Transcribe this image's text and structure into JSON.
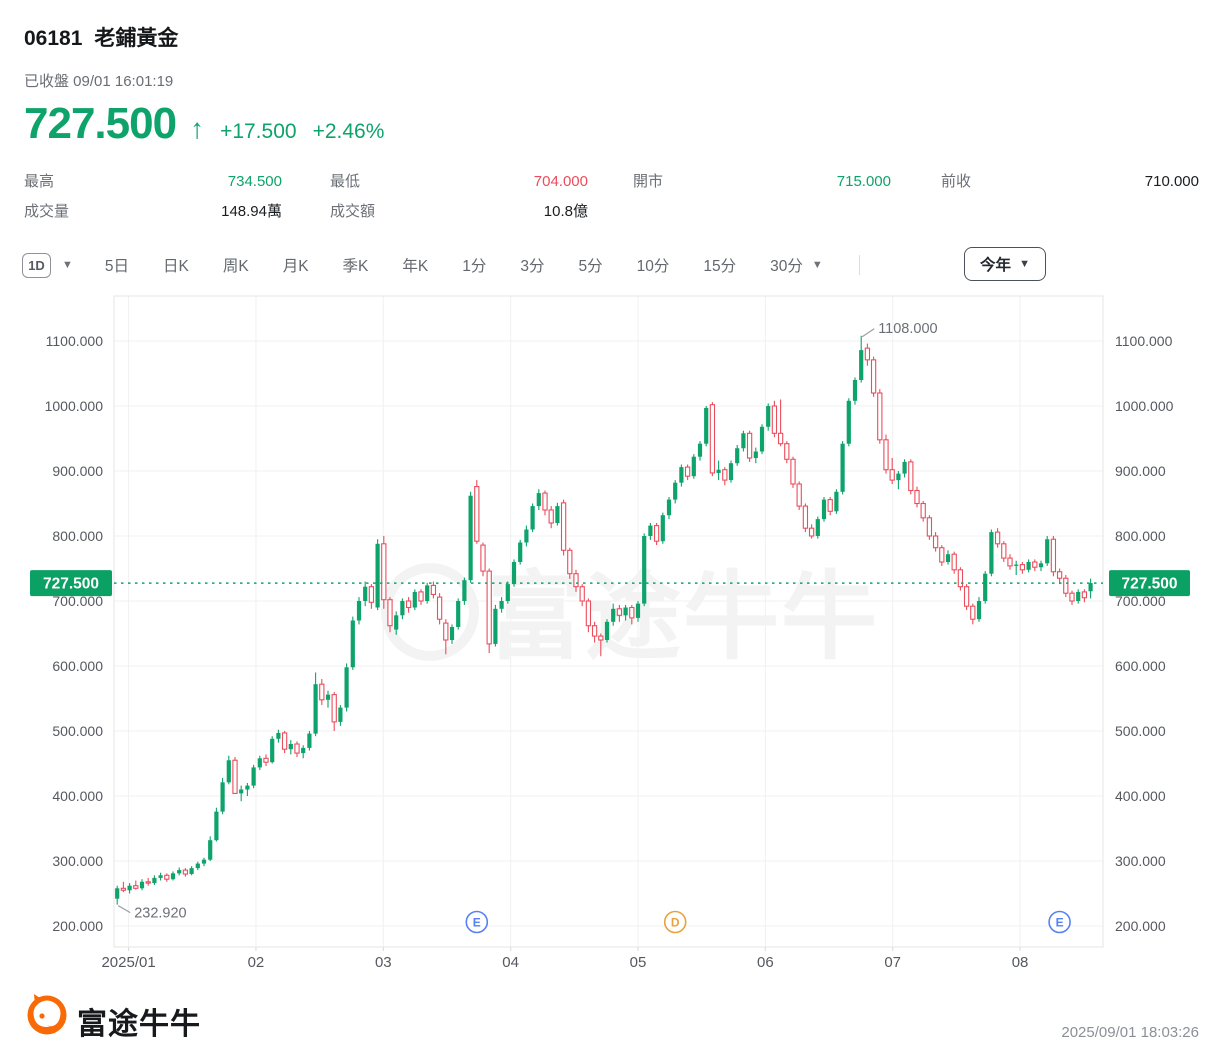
{
  "header": {
    "stock_code": "06181",
    "stock_name": "老鋪黃金",
    "status": "已收盤 09/01 16:01:19",
    "price": "727.500",
    "arrow": "↑",
    "change": "+17.500",
    "change_pct": "+2.46%",
    "stats": [
      {
        "label": "最高",
        "value": "734.500",
        "tone": "up"
      },
      {
        "label": "最低",
        "value": "704.000",
        "tone": "down"
      },
      {
        "label": "開市",
        "value": "715.000",
        "tone": "up"
      },
      {
        "label": "前收",
        "value": "710.000",
        "tone": "neutral"
      },
      {
        "label": "成交量",
        "value": "148.94萬",
        "tone": "neutral"
      },
      {
        "label": "成交額",
        "value": "10.8億",
        "tone": "neutral"
      }
    ]
  },
  "toolbar": {
    "selected": "1D",
    "tabs": [
      {
        "label": "5日"
      },
      {
        "label": "日K"
      },
      {
        "label": "周K"
      },
      {
        "label": "月K"
      },
      {
        "label": "季K"
      },
      {
        "label": "年K"
      },
      {
        "label": "1分"
      },
      {
        "label": "3分"
      },
      {
        "label": "5分"
      },
      {
        "label": "10分"
      },
      {
        "label": "15分"
      },
      {
        "label": "30分",
        "caret": true
      }
    ],
    "range": "今年"
  },
  "colors": {
    "up": "#0EA36B",
    "down": "#EC4D5C",
    "badge": "#0BA064",
    "grid": "#F0F0F0",
    "border": "#E4E4E4",
    "axis_text": "#55595F",
    "annotation_text": "#6B7077",
    "marker_blue": "#5580F6",
    "marker_orange": "#E9A23C",
    "watermark": "#F3F3F3",
    "neutral_text": "#1B1E21"
  },
  "chart_data": {
    "type": "candlestick",
    "symbol": "06181",
    "period": "1D",
    "range": "今年",
    "x_ticks": [
      "2025/01",
      "02",
      "03",
      "04",
      "05",
      "06",
      "07",
      "08"
    ],
    "y_ticks": [
      1100,
      1000,
      900,
      800,
      700,
      600,
      500,
      400,
      300,
      200
    ],
    "ylim": [
      168,
      1169
    ],
    "current_price": 727.5,
    "current_price_label": "727.500",
    "annotations": {
      "high": {
        "label": "1108.000",
        "candle_index": 120,
        "price": 1108
      },
      "low": {
        "label": "232.920",
        "candle_index": 0,
        "price": 232.92
      }
    },
    "markers": [
      {
        "letter": "E",
        "color": "#5580F6",
        "candle_index": 58
      },
      {
        "letter": "D",
        "color": "#E9A23C",
        "candle_index": 90
      },
      {
        "letter": "E",
        "color": "#5580F6",
        "candle_index": 152
      }
    ],
    "watermark": "富途牛牛",
    "candles": [
      [
        242,
        262,
        232.92,
        258
      ],
      [
        258,
        268,
        252,
        255
      ],
      [
        255,
        266,
        250,
        262
      ],
      [
        262,
        270,
        256,
        258
      ],
      [
        258,
        272,
        255,
        268
      ],
      [
        268,
        274,
        262,
        266
      ],
      [
        266,
        278,
        263,
        274
      ],
      [
        274,
        282,
        270,
        278
      ],
      [
        278,
        281,
        268,
        272
      ],
      [
        272,
        284,
        270,
        281
      ],
      [
        281,
        290,
        278,
        286
      ],
      [
        286,
        289,
        276,
        280
      ],
      [
        280,
        292,
        278,
        289
      ],
      [
        289,
        299,
        286,
        296
      ],
      [
        296,
        305,
        292,
        302
      ],
      [
        302,
        338,
        300,
        332
      ],
      [
        332,
        382,
        330,
        376
      ],
      [
        376,
        428,
        372,
        421
      ],
      [
        421,
        462,
        418,
        455
      ],
      [
        455,
        460,
        420,
        404
      ],
      [
        404,
        416,
        392,
        410
      ],
      [
        410,
        420,
        400,
        416
      ],
      [
        416,
        448,
        412,
        444
      ],
      [
        444,
        462,
        440,
        458
      ],
      [
        458,
        464,
        446,
        452
      ],
      [
        452,
        492,
        450,
        488
      ],
      [
        488,
        502,
        482,
        497
      ],
      [
        497,
        500,
        466,
        472
      ],
      [
        472,
        486,
        464,
        480
      ],
      [
        480,
        484,
        460,
        466
      ],
      [
        466,
        478,
        458,
        474
      ],
      [
        474,
        500,
        470,
        496
      ],
      [
        496,
        590,
        492,
        572
      ],
      [
        572,
        580,
        540,
        548
      ],
      [
        548,
        562,
        536,
        556
      ],
      [
        556,
        560,
        500,
        514
      ],
      [
        514,
        540,
        508,
        536
      ],
      [
        536,
        604,
        530,
        598
      ],
      [
        598,
        676,
        594,
        670
      ],
      [
        670,
        706,
        664,
        700
      ],
      [
        700,
        730,
        692,
        722
      ],
      [
        722,
        726,
        688,
        698
      ],
      [
        690,
        795,
        686,
        788
      ],
      [
        788,
        800,
        688,
        702
      ],
      [
        702,
        706,
        652,
        662
      ],
      [
        656,
        684,
        648,
        678
      ],
      [
        678,
        704,
        672,
        700
      ],
      [
        700,
        706,
        682,
        690
      ],
      [
        690,
        718,
        686,
        714
      ],
      [
        714,
        718,
        694,
        700
      ],
      [
        700,
        728,
        696,
        724
      ],
      [
        724,
        730,
        704,
        710
      ],
      [
        706,
        712,
        664,
        672
      ],
      [
        666,
        672,
        618,
        640
      ],
      [
        640,
        664,
        634,
        660
      ],
      [
        660,
        704,
        656,
        700
      ],
      [
        700,
        736,
        694,
        732
      ],
      [
        732,
        868,
        728,
        862
      ],
      [
        876,
        886,
        788,
        792
      ],
      [
        786,
        790,
        738,
        746
      ],
      [
        746,
        750,
        620,
        634
      ],
      [
        634,
        694,
        630,
        688
      ],
      [
        688,
        706,
        682,
        700
      ],
      [
        700,
        730,
        696,
        726
      ],
      [
        726,
        764,
        722,
        760
      ],
      [
        760,
        794,
        756,
        790
      ],
      [
        790,
        816,
        784,
        810
      ],
      [
        810,
        850,
        806,
        846
      ],
      [
        846,
        872,
        840,
        866
      ],
      [
        866,
        870,
        832,
        840
      ],
      [
        840,
        846,
        812,
        820
      ],
      [
        820,
        851,
        816,
        846
      ],
      [
        851,
        856,
        770,
        778
      ],
      [
        778,
        782,
        734,
        742
      ],
      [
        742,
        748,
        714,
        722
      ],
      [
        722,
        726,
        692,
        700
      ],
      [
        700,
        704,
        652,
        662
      ],
      [
        662,
        668,
        636,
        646
      ],
      [
        646,
        650,
        615,
        640
      ],
      [
        640,
        672,
        636,
        668
      ],
      [
        668,
        696,
        662,
        688
      ],
      [
        688,
        694,
        668,
        678
      ],
      [
        678,
        694,
        670,
        690
      ],
      [
        690,
        694,
        664,
        674
      ],
      [
        674,
        700,
        668,
        696
      ],
      [
        696,
        804,
        692,
        800
      ],
      [
        800,
        820,
        794,
        816
      ],
      [
        816,
        820,
        786,
        792
      ],
      [
        792,
        836,
        788,
        832
      ],
      [
        832,
        860,
        826,
        856
      ],
      [
        856,
        886,
        850,
        882
      ],
      [
        882,
        910,
        876,
        906
      ],
      [
        906,
        910,
        886,
        892
      ],
      [
        892,
        926,
        888,
        922
      ],
      [
        922,
        946,
        916,
        942
      ],
      [
        942,
        1000,
        938,
        997
      ],
      [
        1002,
        1006,
        892,
        897
      ],
      [
        897,
        916,
        886,
        902
      ],
      [
        902,
        906,
        878,
        886
      ],
      [
        886,
        916,
        882,
        912
      ],
      [
        912,
        940,
        908,
        935
      ],
      [
        935,
        962,
        930,
        958
      ],
      [
        958,
        962,
        914,
        920
      ],
      [
        920,
        936,
        912,
        930
      ],
      [
        930,
        972,
        926,
        968
      ],
      [
        968,
        1004,
        962,
        1000
      ],
      [
        1000,
        1008,
        952,
        958
      ],
      [
        958,
        1010,
        938,
        942
      ],
      [
        942,
        946,
        912,
        918
      ],
      [
        918,
        922,
        874,
        880
      ],
      [
        880,
        884,
        840,
        846
      ],
      [
        846,
        850,
        806,
        812
      ],
      [
        812,
        818,
        796,
        800
      ],
      [
        800,
        830,
        796,
        826
      ],
      [
        826,
        860,
        822,
        856
      ],
      [
        856,
        860,
        832,
        838
      ],
      [
        838,
        872,
        834,
        868
      ],
      [
        868,
        946,
        864,
        942
      ],
      [
        942,
        1012,
        938,
        1008
      ],
      [
        1008,
        1044,
        1002,
        1040
      ],
      [
        1040,
        1108,
        1036,
        1086
      ],
      [
        1089,
        1096,
        1062,
        1071
      ],
      [
        1071,
        1076,
        1014,
        1020
      ],
      [
        1020,
        1026,
        942,
        948
      ],
      [
        948,
        956,
        896,
        902
      ],
      [
        902,
        920,
        880,
        886
      ],
      [
        886,
        900,
        872,
        896
      ],
      [
        896,
        918,
        890,
        914
      ],
      [
        914,
        918,
        864,
        870
      ],
      [
        870,
        876,
        844,
        850
      ],
      [
        850,
        854,
        822,
        828
      ],
      [
        828,
        832,
        794,
        800
      ],
      [
        800,
        806,
        776,
        782
      ],
      [
        782,
        786,
        754,
        760
      ],
      [
        760,
        778,
        756,
        772
      ],
      [
        772,
        776,
        742,
        748
      ],
      [
        748,
        752,
        716,
        722
      ],
      [
        722,
        726,
        686,
        692
      ],
      [
        692,
        696,
        664,
        672
      ],
      [
        672,
        706,
        668,
        700
      ],
      [
        700,
        746,
        696,
        742
      ],
      [
        742,
        810,
        738,
        806
      ],
      [
        806,
        812,
        782,
        788
      ],
      [
        788,
        792,
        760,
        766
      ],
      [
        766,
        772,
        748,
        754
      ],
      [
        754,
        762,
        740,
        756
      ],
      [
        756,
        760,
        742,
        748
      ],
      [
        748,
        764,
        744,
        760
      ],
      [
        760,
        764,
        746,
        752
      ],
      [
        752,
        762,
        746,
        758
      ],
      [
        758,
        800,
        754,
        795
      ],
      [
        795,
        800,
        738,
        745
      ],
      [
        745,
        750,
        726,
        735
      ],
      [
        735,
        740,
        706,
        712
      ],
      [
        712,
        716,
        694,
        700
      ],
      [
        700,
        718,
        696,
        714
      ],
      [
        714,
        718,
        698,
        705
      ],
      [
        715,
        734.5,
        704,
        727.5
      ]
    ]
  },
  "footer": {
    "brand": "富途牛牛",
    "timestamp": "2025/09/01 18:03:26"
  }
}
